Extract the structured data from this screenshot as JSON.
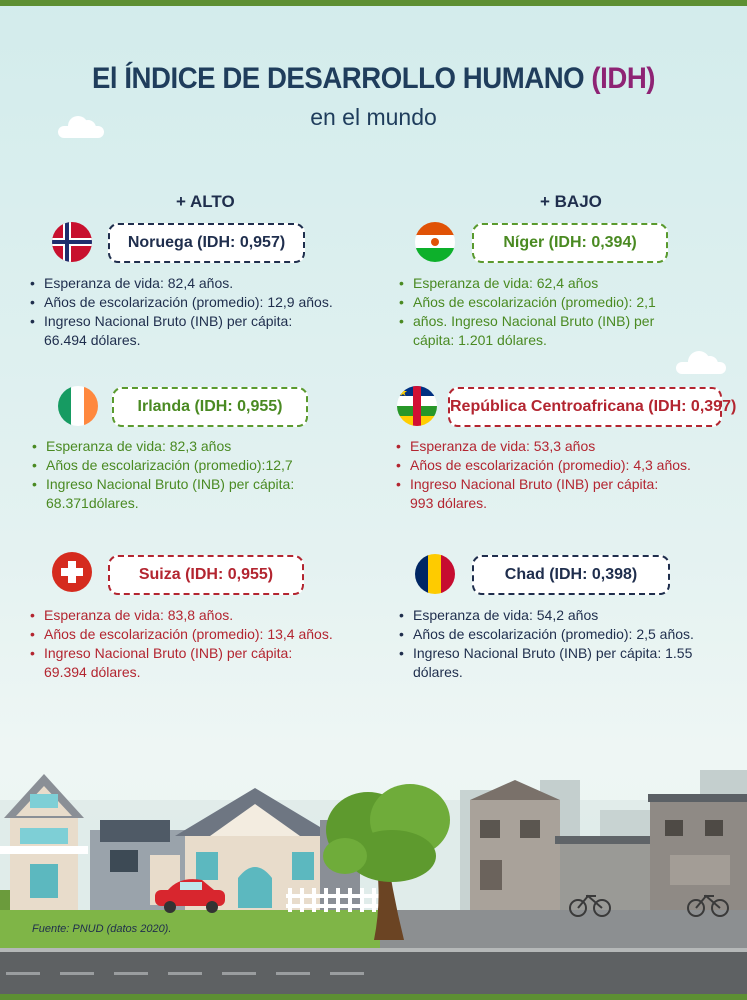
{
  "title": {
    "main": "El ÍNDICE DE DESARROLLO HUMANO",
    "accent": "(IDH)",
    "subtitle": "en el mundo"
  },
  "columns": {
    "high": "+ ALTO",
    "low": "+ BAJO"
  },
  "countries": {
    "norway": {
      "label": "Noruega (IDH: 0,957)",
      "flag": "norway-flag-icon",
      "bullets": [
        "Esperanza de vida: 82,4 años.",
        "Años de escolarización (promedio): 12,9 años.",
        "Ingreso Nacional Bruto (INB) per cápita:",
        "66.494 dólares."
      ]
    },
    "niger": {
      "label": "Níger (IDH: 0,394)",
      "flag": "niger-flag-icon",
      "bullets": [
        "Esperanza de vida: 62,4 años",
        "Años de escolarización (promedio): 2,1",
        "años. Ingreso Nacional Bruto (INB) per",
        "cápita: 1.201 dólares."
      ]
    },
    "ireland": {
      "label": "Irlanda (IDH: 0,955)",
      "flag": "ireland-flag-icon",
      "bullets": [
        "Esperanza de vida: 82,3 años",
        "Años de escolarización  (promedio):12,7",
        "Ingreso Nacional Bruto (INB) per cápita:",
        "68.371dólares."
      ]
    },
    "car": {
      "label": "República Centroafricana (IDH: 0,397)",
      "flag": "central-african-republic-flag-icon",
      "bullets": [
        "Esperanza de vida: 53,3 años",
        "Años de escolarización (promedio): 4,3 años.",
        "Ingreso Nacional Bruto (INB) per cápita:",
        "993 dólares."
      ]
    },
    "switzerland": {
      "label": "Suiza (IDH: 0,955)",
      "flag": "switzerland-flag-icon",
      "bullets": [
        "Esperanza de vida: 83,8 años.",
        "Años de escolarización (promedio): 13,4 años.",
        "Ingreso Nacional Bruto (INB) per cápita:",
        "69.394 dólares."
      ]
    },
    "chad": {
      "label": "Chad (IDH: 0,398)",
      "flag": "chad-flag-icon",
      "bullets": [
        "Esperanza de vida: 54,2 años",
        "Años de escolarización (promedio): 2,5 años.",
        "Ingreso Nacional Bruto (INB) per cápita: 1.55",
        "dólares."
      ]
    }
  },
  "source": "Fuente: PNUD (datos 2020).",
  "colors": {
    "navy": "#1f2e4d",
    "green": "#4a8a22",
    "red": "#b32530",
    "accent": "#8e2374",
    "bar": "#5d8f33"
  }
}
